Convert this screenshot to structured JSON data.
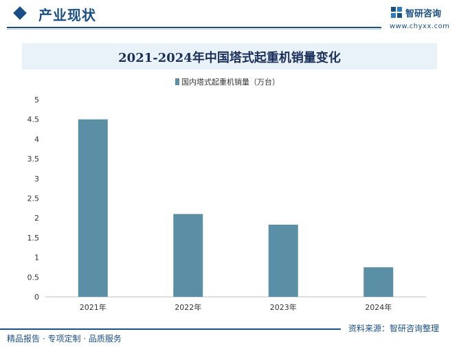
{
  "header": {
    "section_title": "产业现状",
    "brand_name": "智研咨询",
    "brand_url": "www.chyxx.com"
  },
  "colors": {
    "brand": "#1a4f86",
    "bar": "#5b8fa6",
    "title_band": "#e9f1f9"
  },
  "chart_data": {
    "type": "bar",
    "title": "2021-2024年中国塔式起重机销量变化",
    "categories": [
      "2021年",
      "2022年",
      "2023年",
      "2024年"
    ],
    "series": [
      {
        "name": "国内塔式起重机销量（万台）",
        "values": [
          4.5,
          2.1,
          1.83,
          0.75
        ]
      }
    ],
    "yticks": [
      "0",
      "0.5",
      "1",
      "1.5",
      "2",
      "2.5",
      "3",
      "3.5",
      "4",
      "4.5",
      "5"
    ],
    "ylim": [
      0,
      5
    ],
    "legend": "top-center",
    "grid": false
  },
  "footer": {
    "left_text": "精品报告 · 专项定制 · 品质服务",
    "source_text": "资料来源：智研咨询整理"
  }
}
